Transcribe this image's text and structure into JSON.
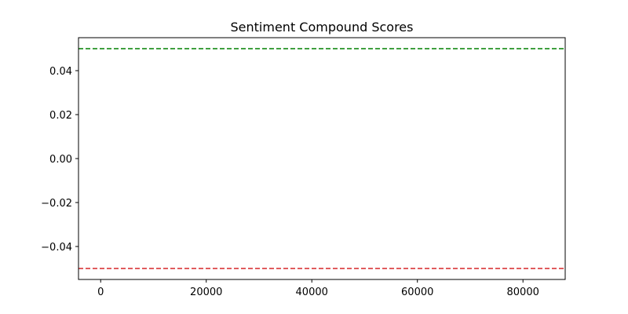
{
  "chart_data": {
    "type": "line",
    "title": "Sentiment Compound Scores",
    "xlabel": "",
    "ylabel": "",
    "xlim": [
      -4200,
      88000
    ],
    "ylim": [
      -0.055,
      0.055
    ],
    "x_ticks": [
      0,
      20000,
      40000,
      60000,
      80000
    ],
    "x_tick_labels": [
      "0",
      "20000",
      "40000",
      "60000",
      "80000"
    ],
    "y_ticks": [
      0.04,
      0.02,
      0.0,
      -0.02,
      -0.04
    ],
    "y_tick_labels": [
      "0.04",
      "0.02",
      "0.00",
      "−0.02",
      "−0.04"
    ],
    "grid": false,
    "threshold_lines": [
      {
        "y": 0.05,
        "color": "#008000",
        "style": "dashed"
      },
      {
        "y": -0.05,
        "color": "#d62728",
        "style": "dashed"
      }
    ]
  }
}
